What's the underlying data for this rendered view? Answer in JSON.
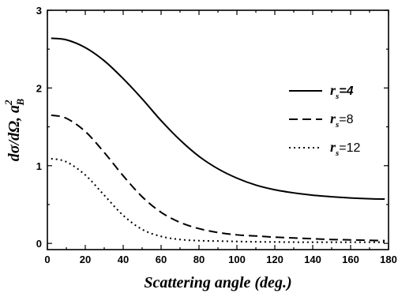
{
  "chart_data": {
    "type": "line",
    "xlabel": "Scattering angle (deg.)",
    "ylabel": "dσ/dΩ, a_B^2",
    "xlim": [
      0,
      180
    ],
    "ylim": [
      -0.08,
      3.0
    ],
    "x_ticks": [
      0,
      20,
      40,
      60,
      80,
      100,
      120,
      140,
      160,
      180
    ],
    "y_ticks": [
      0,
      1,
      2,
      3
    ],
    "legend_position": "right",
    "series": [
      {
        "name": "r_s=4",
        "symbol": "r",
        "subscript": "s",
        "value_text": "=4",
        "value_italic": true,
        "dash": "solid",
        "x": [
          2,
          10,
          20,
          30,
          40,
          50,
          60,
          70,
          80,
          90,
          100,
          110,
          120,
          130,
          140,
          150,
          160,
          170,
          178
        ],
        "y": [
          2.64,
          2.62,
          2.52,
          2.35,
          2.12,
          1.86,
          1.58,
          1.33,
          1.12,
          0.96,
          0.84,
          0.75,
          0.69,
          0.65,
          0.62,
          0.6,
          0.585,
          0.575,
          0.57
        ]
      },
      {
        "name": "r_s=8",
        "symbol": "r",
        "subscript": "s",
        "value_text": "=8",
        "value_italic": false,
        "dash": "dashed",
        "x": [
          2,
          10,
          20,
          30,
          40,
          50,
          60,
          70,
          80,
          90,
          100,
          110,
          120,
          130,
          140,
          150,
          160,
          170,
          178
        ],
        "y": [
          1.65,
          1.61,
          1.44,
          1.17,
          0.87,
          0.6,
          0.4,
          0.27,
          0.19,
          0.14,
          0.11,
          0.095,
          0.08,
          0.07,
          0.06,
          0.05,
          0.045,
          0.04,
          0.035
        ]
      },
      {
        "name": "r_s=12",
        "symbol": "r",
        "subscript": "s",
        "value_text": "=12",
        "value_italic": false,
        "dash": "dotted",
        "x": [
          2,
          10,
          20,
          30,
          40,
          50,
          60,
          70,
          80,
          90,
          100,
          110,
          120,
          130,
          140,
          150,
          160,
          170,
          178
        ],
        "y": [
          1.09,
          1.05,
          0.88,
          0.62,
          0.36,
          0.18,
          0.09,
          0.05,
          0.035,
          0.03,
          0.025,
          0.02,
          0.018,
          0.016,
          0.015,
          0.015,
          0.015,
          0.015,
          0.015
        ]
      }
    ]
  }
}
